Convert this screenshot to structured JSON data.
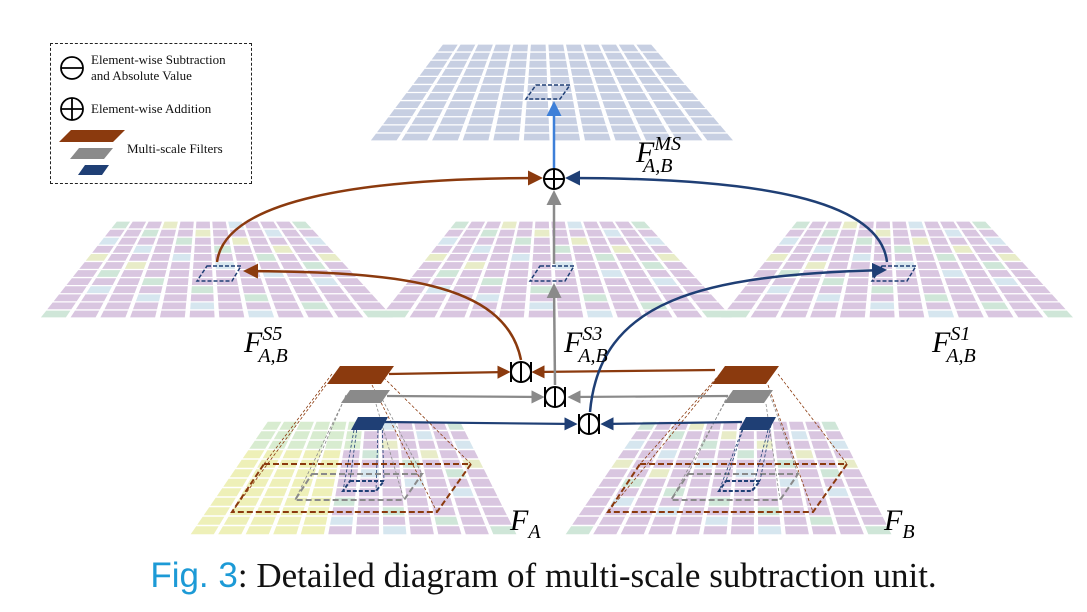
{
  "legend": {
    "subtraction_label": "Element-wise Subtraction and Absolute Value",
    "subtraction_line1": "Element-wise Subtraction",
    "subtraction_line2": "and Absolute Value",
    "addition_label": "Element-wise Addition",
    "filters_label": "Multi-scale Filters"
  },
  "labels": {
    "f_ms": {
      "base": "F",
      "sub": "A,B",
      "sup": "MS"
    },
    "f_s5": {
      "base": "F",
      "sub": "A,B",
      "sup": "S5"
    },
    "f_s3": {
      "base": "F",
      "sub": "A,B",
      "sup": "S3"
    },
    "f_s1": {
      "base": "F",
      "sub": "A,B",
      "sup": "S1"
    },
    "f_a": {
      "base": "F",
      "sub": "A"
    },
    "f_b": {
      "base": "F",
      "sub": "B"
    }
  },
  "caption": {
    "figref": "Fig. 3",
    "text": ": Detailed diagram of multi-scale subtraction unit."
  },
  "colors": {
    "scale5": "#8b3a0e",
    "scale3": "#8a8a8a",
    "scale1": "#1f3f75",
    "addition_arrow": "#3d7fd8",
    "grid_ms": "#c7cfe2",
    "grid_s": "#d9c6e0",
    "caption_ref": "#1c9ad6"
  },
  "icons": {
    "subtraction": "circle-minus-icon",
    "addition": "circle-plus-icon"
  }
}
